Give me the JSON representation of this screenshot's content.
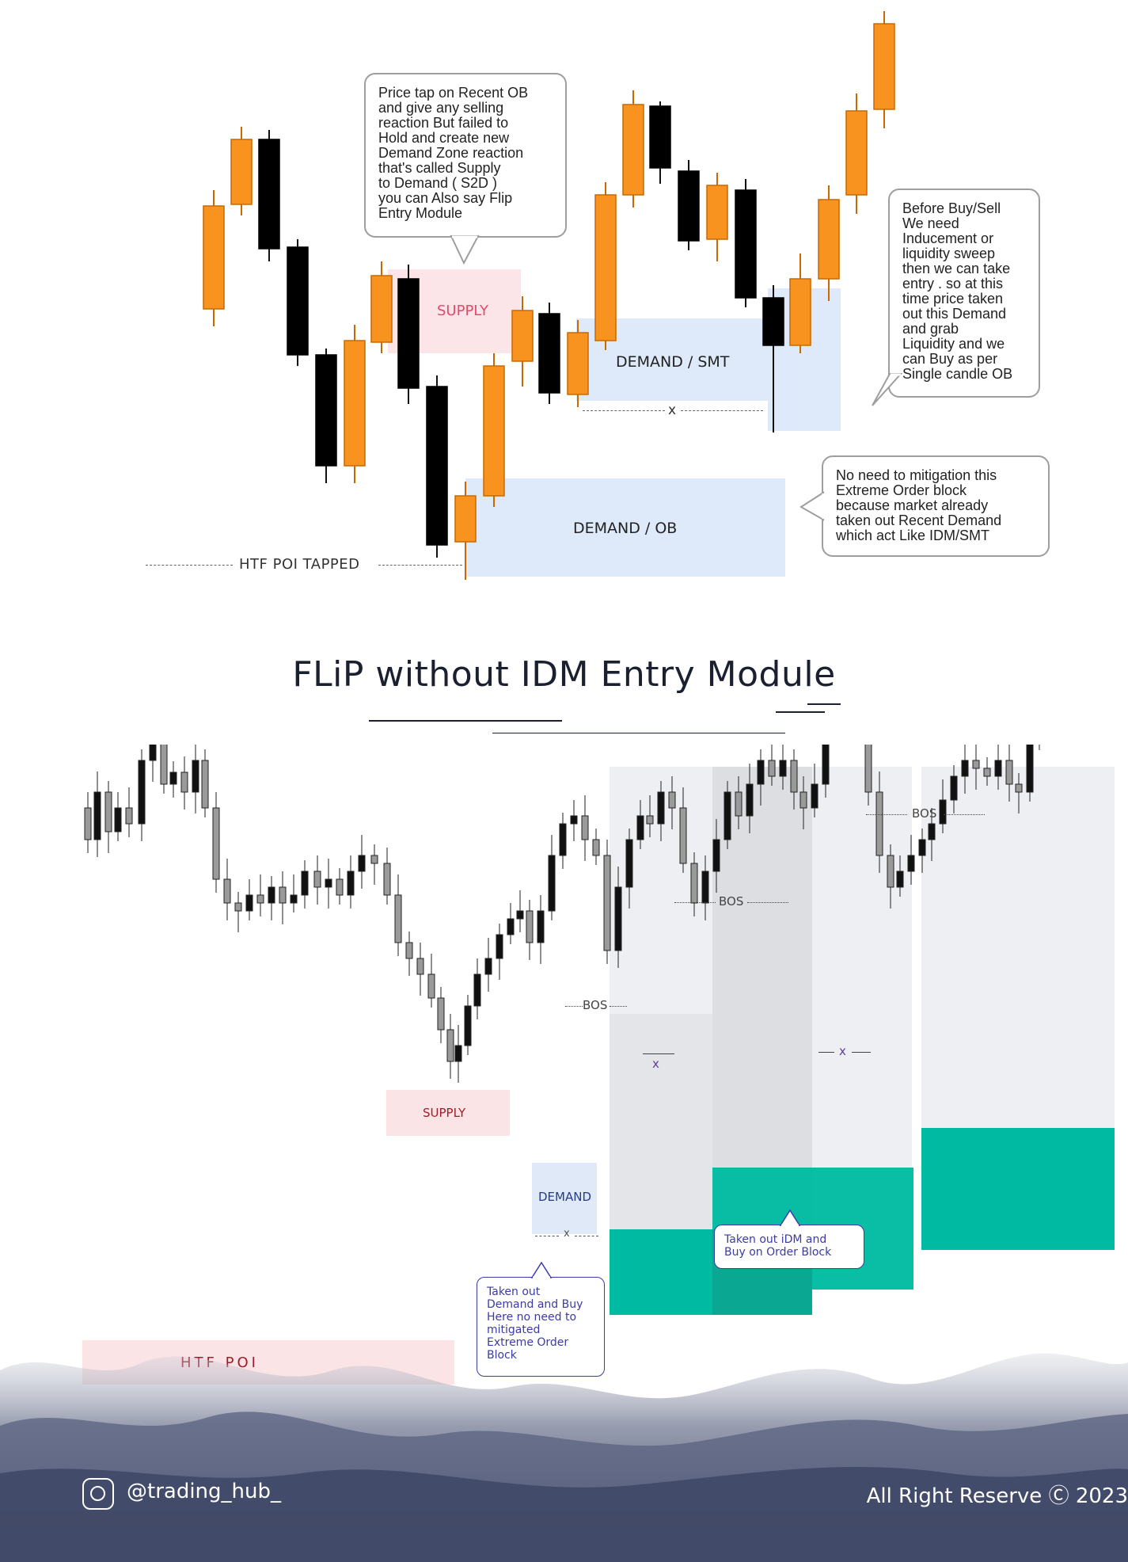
{
  "top_diagram": {
    "callouts": {
      "s2d": "Price tap on Recent OB\nand give any selling\nreaction But failed to\nHold  and create new\nDemand Zone reaction\nthat's called Supply\n to Demand  ( S2D )\nyou can Also  say Flip\nEntry Module",
      "inducement": "Before Buy/Sell\nWe need\nInducement or\nliquidity sweep\nthen we can take\nentry . so at this\ntime price taken\nout this Demand\nand grab\nLiquidity and we\ncan Buy as per\nSingle candle OB",
      "no_mitigation": "No need to mitigation this\nExtreme Order block\nbecause market already\ntaken out Recent  Demand\nwhich act Like IDM/SMT"
    },
    "zones": {
      "supply": "SUPPLY",
      "demand_smt": "DEMAND / SMT",
      "demand_ob": "DEMAND / OB",
      "htf_poi_tapped": "HTF  POI  TAPPED",
      "sweep_marker": "x"
    },
    "colors": {
      "bull": "#f7931e",
      "bull_border": "#c86a00",
      "bear": "#000000",
      "supply": "#fbe1e4",
      "demand": "#deeaf9"
    }
  },
  "title": "FLiP without IDM  Entry Module",
  "bottom_chart": {
    "labels": {
      "bos1": "BOS",
      "bos2": "BOS",
      "bos3": "BOS",
      "supply": "SUPPLY",
      "demand": "DEMAND",
      "htf_poi": "HTF  POI",
      "x1": "x",
      "x2": "x",
      "x3": "x"
    },
    "callouts": {
      "demand_buy": "Taken out\nDemand and Buy\nHere no need to\nmitigated\nExtreme Order\nBlock",
      "idm_ob": "Taken out iDM and\nBuy on Order Block"
    },
    "colors": {
      "teal": "#00bba2",
      "panel": "#eeeff2",
      "panel_dark": "#dcdee2",
      "supply": "#fbe4e6",
      "demand": "#dfe9f8"
    }
  },
  "footer": {
    "handle": "@trading_hub_",
    "copyright": "All Right Reserve Ⓒ 2023",
    "icon": "instagram-icon"
  }
}
